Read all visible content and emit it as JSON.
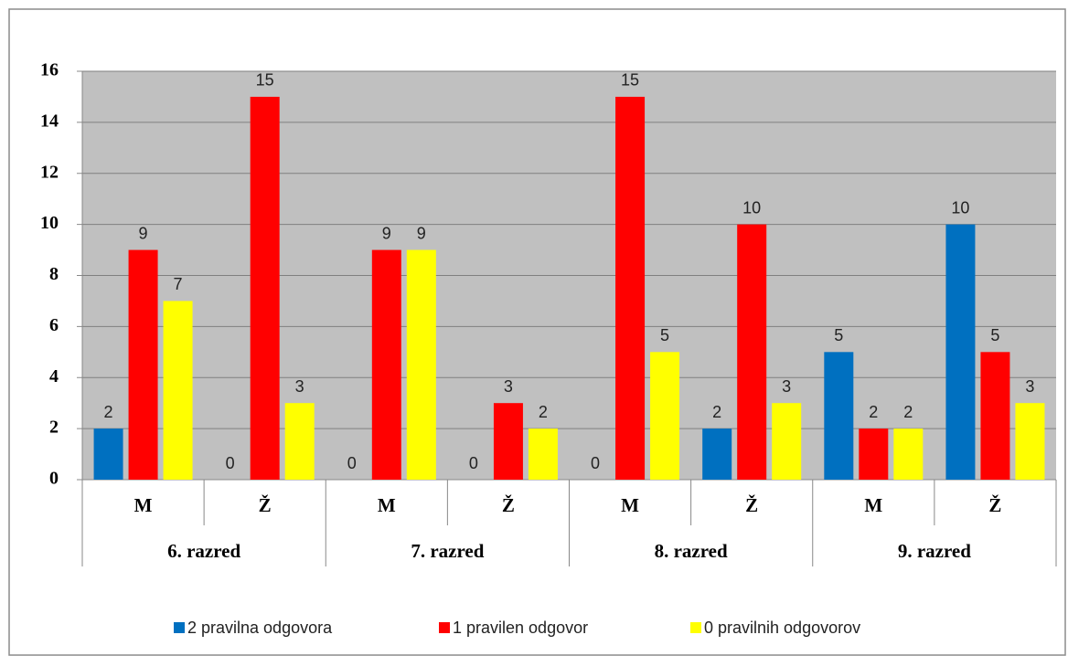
{
  "chart_data": {
    "type": "bar",
    "categories": [
      "M",
      "Ž",
      "M",
      "Ž",
      "M",
      "Ž",
      "M",
      "Ž"
    ],
    "groups": [
      "6. razred",
      "7. razred",
      "8. razred",
      "9. razred"
    ],
    "series": [
      {
        "name": "2 pravilna odgovora",
        "color": "#0070c0",
        "values": [
          2,
          0,
          0,
          0,
          0,
          2,
          5,
          10
        ]
      },
      {
        "name": "1 pravilen odgovor",
        "color": "#ff0000",
        "values": [
          9,
          15,
          9,
          3,
          15,
          10,
          2,
          5
        ]
      },
      {
        "name": "0 pravilnih odgovorov",
        "color": "#ffff00",
        "values": [
          7,
          3,
          9,
          2,
          5,
          3,
          2,
          3
        ]
      }
    ],
    "ylim": [
      0,
      16
    ],
    "yticks": [
      0,
      2,
      4,
      6,
      8,
      10,
      12,
      14,
      16
    ],
    "grid": true,
    "legend": "bottom"
  }
}
